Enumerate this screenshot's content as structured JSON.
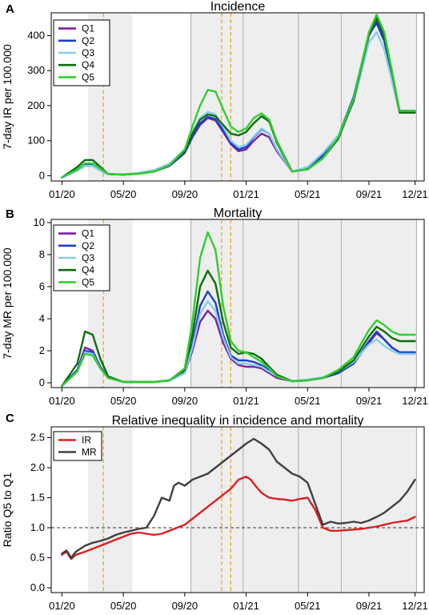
{
  "x_ticks": [
    "01/20",
    "05/20",
    "09/20",
    "01/21",
    "05/21",
    "09/21",
    "12/21"
  ],
  "chart_data": [
    {
      "panel": "A",
      "type": "line",
      "title": "Incidence",
      "xlabel": "",
      "ylabel": "7-day IR per 100.000",
      "ylim": [
        0,
        450
      ],
      "yticks": [
        "0",
        "100",
        "200",
        "300",
        "400"
      ],
      "ytick_values": [
        0,
        100,
        200,
        300,
        400
      ],
      "x": [
        0,
        1,
        1.5,
        2,
        2.5,
        3,
        4,
        5,
        6,
        7,
        8,
        8.5,
        9,
        9.5,
        10,
        10.5,
        11,
        11.5,
        12,
        12.5,
        13,
        13.5,
        14,
        15,
        16,
        17,
        18,
        19,
        20,
        20.5,
        21,
        21.5,
        22,
        23
      ],
      "series": [
        {
          "name": "Q1",
          "color": "#7B1FA2",
          "values": [
            -5,
            15,
            28,
            28,
            15,
            5,
            3,
            6,
            12,
            28,
            65,
            110,
            145,
            165,
            158,
            125,
            90,
            70,
            75,
            100,
            120,
            110,
            70,
            12,
            20,
            55,
            110,
            220,
            400,
            440,
            390,
            290,
            185,
            185
          ]
        },
        {
          "name": "Q2",
          "color": "#1A3FC8",
          "values": [
            -5,
            15,
            30,
            30,
            15,
            5,
            3,
            6,
            12,
            28,
            65,
            112,
            150,
            168,
            162,
            130,
            95,
            75,
            82,
            110,
            133,
            120,
            75,
            12,
            22,
            58,
            112,
            225,
            405,
            435,
            385,
            285,
            185,
            185
          ]
        },
        {
          "name": "Q3",
          "color": "#87CEEB",
          "values": [
            -5,
            15,
            28,
            28,
            15,
            5,
            4,
            8,
            16,
            34,
            75,
            125,
            165,
            182,
            175,
            140,
            100,
            82,
            88,
            112,
            135,
            120,
            75,
            12,
            25,
            65,
            115,
            210,
            380,
            410,
            360,
            270,
            180,
            180
          ]
        },
        {
          "name": "Q4",
          "color": "#0B6E0B",
          "values": [
            -5,
            25,
            45,
            45,
            25,
            5,
            3,
            6,
            12,
            30,
            70,
            120,
            160,
            175,
            170,
            145,
            120,
            115,
            125,
            150,
            170,
            155,
            95,
            12,
            18,
            50,
            105,
            215,
            405,
            450,
            400,
            295,
            180,
            180
          ]
        },
        {
          "name": "Q5",
          "color": "#33CC33",
          "values": [
            -5,
            18,
            35,
            35,
            20,
            5,
            3,
            6,
            12,
            30,
            75,
            140,
            200,
            245,
            240,
            190,
            140,
            125,
            135,
            165,
            178,
            160,
            100,
            12,
            18,
            50,
            110,
            220,
            410,
            460,
            410,
            300,
            185,
            185
          ]
        }
      ],
      "legend": "top-left"
    },
    {
      "panel": "B",
      "type": "line",
      "title": "Mortality",
      "xlabel": "",
      "ylabel": "7-day MR per 100.000",
      "ylim": [
        0,
        10
      ],
      "yticks": [
        "0",
        "2",
        "4",
        "6",
        "8",
        "10"
      ],
      "ytick_values": [
        0,
        2,
        4,
        6,
        8,
        10
      ],
      "x": [
        0,
        1,
        1.5,
        2,
        2.5,
        3,
        4,
        5,
        6,
        7,
        8,
        8.5,
        9,
        9.5,
        10,
        10.5,
        11,
        11.5,
        12,
        12.5,
        13,
        13.5,
        14,
        15,
        16,
        17,
        18,
        19,
        20,
        20.5,
        21,
        21.5,
        22,
        23
      ],
      "series": [
        {
          "name": "Q1",
          "color": "#7B1FA2",
          "values": [
            -0.2,
            0.8,
            2.2,
            2.0,
            1.0,
            0.3,
            0.05,
            0.05,
            0.05,
            0.15,
            0.6,
            2.0,
            3.8,
            4.5,
            4.0,
            2.5,
            1.5,
            1.1,
            1.0,
            1.0,
            0.9,
            0.6,
            0.3,
            0.1,
            0.15,
            0.3,
            0.6,
            1.2,
            2.5,
            3.1,
            2.7,
            2.2,
            1.9,
            1.9
          ]
        },
        {
          "name": "Q2",
          "color": "#1A3FC8",
          "values": [
            -0.2,
            0.8,
            2.0,
            1.9,
            1.0,
            0.3,
            0.05,
            0.05,
            0.05,
            0.15,
            0.7,
            2.4,
            4.8,
            5.7,
            5.0,
            3.0,
            1.7,
            1.4,
            1.4,
            1.3,
            1.1,
            0.8,
            0.4,
            0.1,
            0.15,
            0.3,
            0.6,
            1.2,
            2.6,
            3.2,
            2.7,
            2.2,
            1.9,
            1.9
          ]
        },
        {
          "name": "Q3",
          "color": "#87CEEB",
          "values": [
            -0.2,
            0.7,
            1.9,
            1.8,
            0.9,
            0.3,
            0.05,
            0.05,
            0.05,
            0.15,
            0.6,
            2.2,
            4.3,
            5.1,
            4.5,
            2.8,
            1.6,
            1.2,
            1.2,
            1.1,
            1.0,
            0.7,
            0.4,
            0.1,
            0.2,
            0.35,
            0.7,
            1.3,
            2.4,
            2.7,
            2.3,
            2.0,
            1.8,
            1.8
          ]
        },
        {
          "name": "Q4",
          "color": "#0B6E0B",
          "values": [
            -0.2,
            1.2,
            3.2,
            3.0,
            1.5,
            0.4,
            0.05,
            0.05,
            0.05,
            0.15,
            0.8,
            3.0,
            6.0,
            7.0,
            6.2,
            3.8,
            2.2,
            1.8,
            1.9,
            1.8,
            1.5,
            1.0,
            0.5,
            0.1,
            0.15,
            0.3,
            0.7,
            1.4,
            2.9,
            3.5,
            3.2,
            2.8,
            2.6,
            2.6
          ]
        },
        {
          "name": "Q5",
          "color": "#33CC33",
          "values": [
            -0.2,
            0.7,
            1.8,
            1.7,
            0.9,
            0.3,
            0.05,
            0.05,
            0.05,
            0.15,
            0.9,
            3.8,
            7.8,
            9.4,
            8.3,
            4.8,
            2.6,
            2.0,
            1.9,
            1.6,
            1.3,
            0.9,
            0.4,
            0.1,
            0.15,
            0.3,
            0.8,
            1.6,
            3.3,
            3.9,
            3.6,
            3.2,
            3.0,
            3.0
          ]
        }
      ],
      "legend": "top-left"
    },
    {
      "panel": "C",
      "type": "line",
      "title": "Relative inequality in incidence and mortality",
      "xlabel": "",
      "ylabel": "Ratio Q5 to Q1",
      "ylim": [
        0,
        2.5
      ],
      "yticks": [
        "0.0",
        "0.5",
        "1.0",
        "1.5",
        "2.0",
        "2.5"
      ],
      "ytick_values": [
        0,
        0.5,
        1.0,
        1.5,
        2.0,
        2.5
      ],
      "reference_line": 1.0,
      "series": [
        {
          "name": "IR",
          "color": "#DD1F1F",
          "x": [
            0,
            0.3,
            0.6,
            0.9,
            1.5,
            2,
            2.5,
            3,
            3.5,
            4,
            4.5,
            5,
            5.5,
            6,
            6.5,
            7,
            7.5,
            8,
            8.5,
            9,
            9.5,
            10,
            10.5,
            11,
            11.5,
            12,
            12.3,
            12.6,
            13,
            13.5,
            14,
            14.5,
            15,
            15.5,
            16,
            16.5,
            17,
            17.5,
            18,
            18.5,
            19,
            19.5,
            20,
            20.5,
            21,
            21.5,
            22,
            22.5,
            23
          ],
          "values": [
            0.55,
            0.6,
            0.48,
            0.55,
            0.6,
            0.65,
            0.7,
            0.75,
            0.8,
            0.85,
            0.9,
            0.92,
            0.9,
            0.88,
            0.9,
            0.95,
            1.0,
            1.05,
            1.15,
            1.25,
            1.35,
            1.45,
            1.55,
            1.65,
            1.8,
            1.85,
            1.8,
            1.7,
            1.58,
            1.5,
            1.48,
            1.47,
            1.45,
            1.48,
            1.5,
            1.3,
            1.0,
            0.95,
            0.95,
            0.96,
            0.97,
            0.98,
            1.0,
            1.02,
            1.05,
            1.08,
            1.1,
            1.12,
            1.18
          ]
        },
        {
          "name": "MR",
          "color": "#404040",
          "x": [
            0,
            0.3,
            0.6,
            0.9,
            1.5,
            2,
            2.5,
            3,
            3.5,
            4,
            4.5,
            5,
            5.5,
            6,
            6.5,
            7,
            7.3,
            7.6,
            8,
            8.5,
            9,
            9.5,
            10,
            10.5,
            11,
            11.5,
            12,
            12.5,
            13,
            13.5,
            14,
            14.5,
            15,
            15.5,
            16,
            16.5,
            17,
            17.5,
            18,
            18.5,
            19,
            19.5,
            20,
            20.5,
            21,
            21.5,
            22,
            22.5,
            23
          ],
          "values": [
            0.57,
            0.62,
            0.5,
            0.6,
            0.7,
            0.75,
            0.78,
            0.82,
            0.88,
            0.92,
            0.95,
            0.98,
            1.0,
            1.2,
            1.5,
            1.45,
            1.7,
            1.75,
            1.7,
            1.8,
            1.85,
            1.9,
            2.0,
            2.1,
            2.2,
            2.3,
            2.4,
            2.48,
            2.4,
            2.3,
            2.1,
            2.0,
            1.9,
            1.85,
            1.75,
            1.4,
            1.05,
            1.1,
            1.07,
            1.08,
            1.1,
            1.08,
            1.12,
            1.18,
            1.25,
            1.35,
            1.45,
            1.6,
            1.8
          ]
        }
      ],
      "legend": "top-left"
    }
  ]
}
